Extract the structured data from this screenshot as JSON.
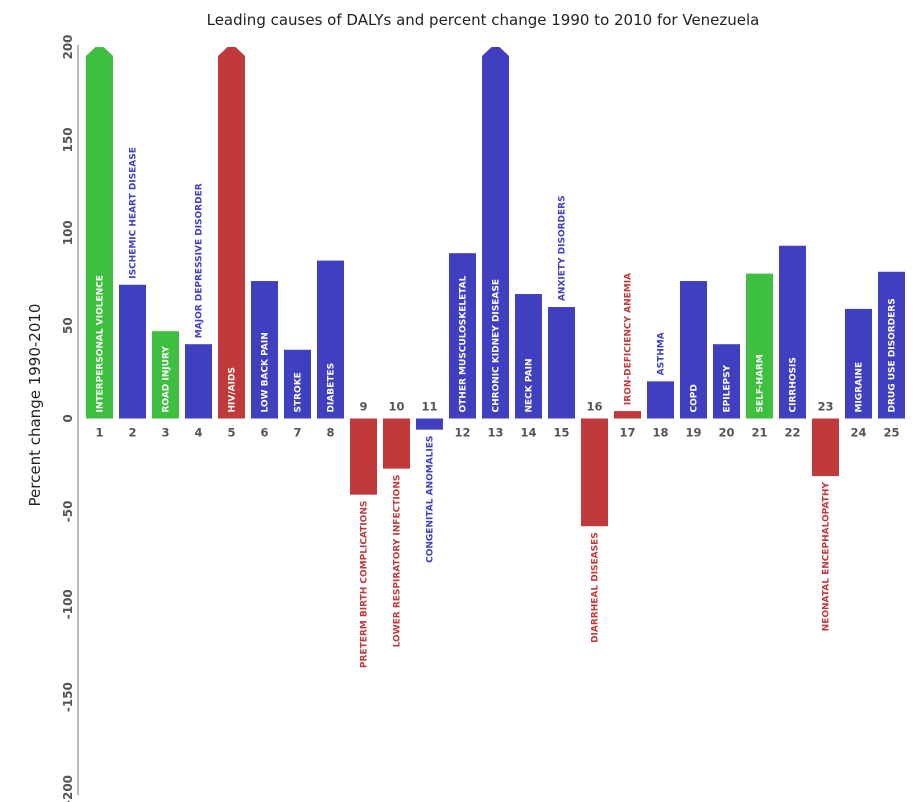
{
  "chart_data": {
    "type": "bar",
    "title": "Leading causes of DALYs and percent change 1990 to 2010 for Venezuela",
    "xlabel": "",
    "ylabel": "Percent change 1990-2010",
    "ylim": [
      -200,
      200
    ],
    "yticks": [
      -200,
      -150,
      -100,
      -50,
      0,
      50,
      100,
      150,
      200
    ],
    "grid": false,
    "legend": "none",
    "note": "",
    "colors": {
      "communicable": "#c0393b",
      "noncommunicable": "#3f3fbf",
      "injuries": "#3fbf3f"
    },
    "bars": [
      {
        "rank": 1,
        "label": "INTERPERSONAL VIOLENCE",
        "value": 200,
        "group": "injuries",
        "truncated": true
      },
      {
        "rank": 2,
        "label": "ISCHEMIC HEART DISEASE",
        "value": 72,
        "group": "noncommunicable"
      },
      {
        "rank": 3,
        "label": "ROAD INJURY",
        "value": 47,
        "group": "injuries"
      },
      {
        "rank": 4,
        "label": "MAJOR DEPRESSIVE DISORDER",
        "value": 40,
        "group": "noncommunicable"
      },
      {
        "rank": 5,
        "label": "HIV/AIDS",
        "value": 200,
        "group": "communicable",
        "truncated": true
      },
      {
        "rank": 6,
        "label": "LOW BACK PAIN",
        "value": 74,
        "group": "noncommunicable"
      },
      {
        "rank": 7,
        "label": "STROKE",
        "value": 37,
        "group": "noncommunicable"
      },
      {
        "rank": 8,
        "label": "DIABETES",
        "value": 85,
        "group": "noncommunicable"
      },
      {
        "rank": 9,
        "label": "PRETERM BIRTH COMPLICATIONS",
        "value": -41,
        "group": "communicable"
      },
      {
        "rank": 10,
        "label": "LOWER RESPIRATORY INFECTIONS",
        "value": -27,
        "group": "communicable"
      },
      {
        "rank": 11,
        "label": "CONGENITAL ANOMALIES",
        "value": -6,
        "group": "noncommunicable"
      },
      {
        "rank": 12,
        "label": "OTHER MUSCULOSKELETAL",
        "value": 89,
        "group": "noncommunicable"
      },
      {
        "rank": 13,
        "label": "CHRONIC KIDNEY DISEASE",
        "value": 200,
        "group": "noncommunicable",
        "truncated": true
      },
      {
        "rank": 14,
        "label": "NECK PAIN",
        "value": 67,
        "group": "noncommunicable"
      },
      {
        "rank": 15,
        "label": "ANXIETY DISORDERS",
        "value": 60,
        "group": "noncommunicable"
      },
      {
        "rank": 16,
        "label": "DIARRHEAL DISEASES",
        "value": -58,
        "group": "communicable"
      },
      {
        "rank": 17,
        "label": "IRON-DEFICIENCY ANEMIA",
        "value": 4,
        "group": "communicable"
      },
      {
        "rank": 18,
        "label": "ASTHMA",
        "value": 20,
        "group": "noncommunicable"
      },
      {
        "rank": 19,
        "label": "COPD",
        "value": 74,
        "group": "noncommunicable"
      },
      {
        "rank": 20,
        "label": "EPILEPSY",
        "value": 40,
        "group": "noncommunicable"
      },
      {
        "rank": 21,
        "label": "SELF-HARM",
        "value": 78,
        "group": "injuries"
      },
      {
        "rank": 22,
        "label": "CIRRHOSIS",
        "value": 93,
        "group": "noncommunicable"
      },
      {
        "rank": 23,
        "label": "NEONATAL ENCEPHALOPATHY",
        "value": -31,
        "group": "communicable"
      },
      {
        "rank": 24,
        "label": "MIGRAINE",
        "value": 59,
        "group": "noncommunicable"
      },
      {
        "rank": 25,
        "label": "DRUG USE DISORDERS",
        "value": 79,
        "group": "noncommunicable"
      }
    ]
  }
}
